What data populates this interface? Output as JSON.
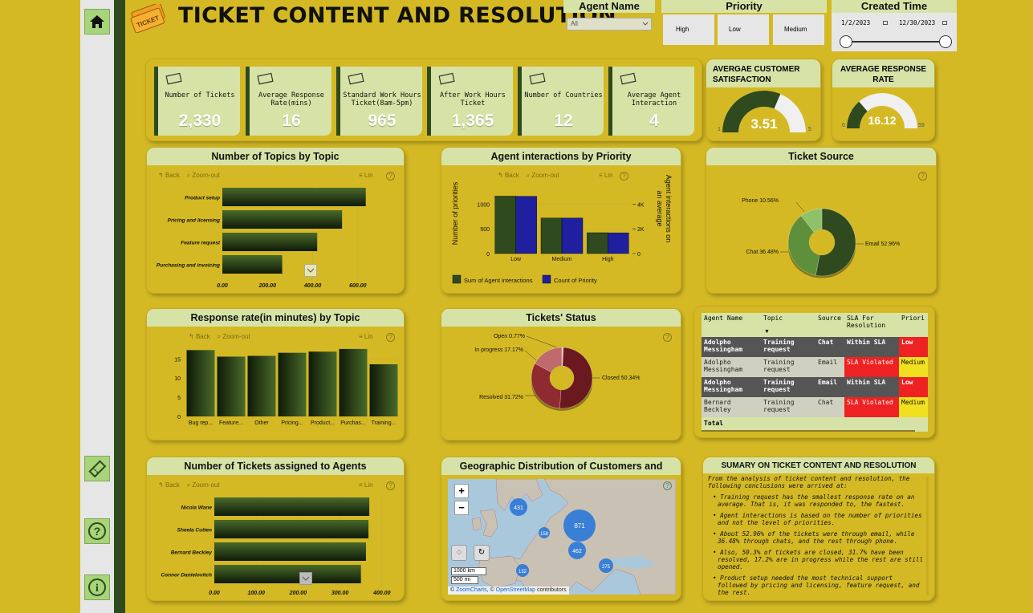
{
  "header": {
    "title": "TICKET CONTENT AND RESOLUTION",
    "logo_text": "TICKET"
  },
  "nav": {
    "home": "home-icon",
    "ticket": "ticket-icon",
    "help": "?",
    "info": "i"
  },
  "slicers": {
    "agent": {
      "title": "Agent Name",
      "value": "All"
    },
    "priority": {
      "title": "Priority",
      "options": [
        "High",
        "Low",
        "Medium"
      ]
    },
    "created": {
      "title": "Created Time",
      "start": "1/2/2023",
      "end": "12/30/2023"
    }
  },
  "kpis": [
    {
      "label": "Number of Tickets",
      "value": "2,330",
      "icon": "ticket-icon"
    },
    {
      "label": "Average Response Rate(mins)",
      "value": "16",
      "icon": "stopwatch-icon"
    },
    {
      "label": "Standard Work Hours Ticket(8am-5pm)",
      "value": "965",
      "icon": "ticket-icon"
    },
    {
      "label": "After Work Hours Ticket",
      "value": "1,365",
      "icon": "ticket-icon"
    },
    {
      "label": "Number of Countries",
      "value": "12",
      "icon": "map-pin-icon"
    },
    {
      "label": "Average Agent Interaction",
      "value": "4",
      "icon": "agent-icon"
    }
  ],
  "gauges": {
    "satisfaction": {
      "title": "AVERGAE CUSTOMER SATISFACTION",
      "value": "3.51",
      "min": "1",
      "max": "5",
      "v": 3.51,
      "lo": 1,
      "hi": 5
    },
    "response": {
      "title": "AVERAGE RESPONSE RATE",
      "value": "16.12",
      "min": "0",
      "max": "59",
      "v": 16.12,
      "lo": 0,
      "hi": 59
    }
  },
  "toolbar": {
    "back": "Back",
    "zoom": "Zoom-out",
    "lin": "Lin",
    "help": "?"
  },
  "chart_data": [
    {
      "id": "topics",
      "type": "bar",
      "title": "Number of Topics by Topic",
      "categories": [
        "Product setup",
        "Pricing and licensing",
        "Feature request",
        "Purchasing and invoicing"
      ],
      "values": [
        635,
        530,
        420,
        265
      ],
      "ticks": [
        "0.00",
        "200.00",
        "400.00",
        "600.00"
      ],
      "xlim": [
        0,
        700
      ]
    },
    {
      "id": "agent_priority",
      "type": "bar",
      "title": "Agent interactions by Priority",
      "categories": [
        "Low",
        "Medium",
        "High"
      ],
      "ylabel": "Number of priorities",
      "y2label": "Agent interactions on an average",
      "yticks": [
        "1000",
        "500",
        "0"
      ],
      "y2ticks": [
        "4K",
        "2K",
        "0"
      ],
      "series": [
        {
          "name": "Sum of Agent interactions",
          "values": [
            4650,
            2880,
            1690
          ],
          "color": "#2e4a1e"
        },
        {
          "name": "Count of Priority",
          "values": [
            1160,
            720,
            420
          ],
          "color": "#1f1fa0"
        }
      ],
      "ylim": [
        0,
        1300
      ],
      "y2lim": [
        0,
        5200
      ]
    },
    {
      "id": "source",
      "type": "pie",
      "title": "Ticket Source",
      "slices": [
        {
          "label": "Email 52.96%",
          "value": 52.96,
          "color": "#2e4a1e"
        },
        {
          "label": "Chat 36.48%",
          "value": 36.48,
          "color": "#5e8f3a"
        },
        {
          "label": "Phone 10.56%",
          "value": 10.56,
          "color": "#8fc06a"
        }
      ]
    },
    {
      "id": "response_topic",
      "type": "bar",
      "title": "Response rate(in minutes) by Topic",
      "categories": [
        "Bug rep...",
        "Feature...",
        "Other",
        "Pricing...",
        "Product...",
        "Purchas...",
        "Training..."
      ],
      "values": [
        17.3,
        15.6,
        15.8,
        16.6,
        16.9,
        17.6,
        13.6
      ],
      "yticks": [
        "15",
        "10",
        "5",
        "0"
      ],
      "ylim": [
        0,
        18
      ]
    },
    {
      "id": "status",
      "type": "pie",
      "title": "Tickets' Status",
      "slices": [
        {
          "label": "Closed 50.34%",
          "value": 50.34,
          "color": "#6a1a1f"
        },
        {
          "label": "Resolved 31.72%",
          "value": 31.72,
          "color": "#8f2a30"
        },
        {
          "label": "In progress 17.17%",
          "value": 17.17,
          "color": "#c06a6e"
        },
        {
          "label": "Open 0.77%",
          "value": 0.77,
          "color": "#e8c0c0"
        }
      ]
    },
    {
      "id": "agents",
      "type": "bar",
      "title": "Number of Tickets assigned to Agents",
      "categories": [
        "Nicola Wane",
        "Sheela Cutten",
        "Bernard Beckley",
        "Connor Danielovitch"
      ],
      "values": [
        370,
        368,
        362,
        350
      ],
      "ticks": [
        "0.00",
        "100.00",
        "200.00",
        "300.00",
        "400.00"
      ],
      "xlim": [
        0,
        410
      ]
    }
  ],
  "table": {
    "headers": [
      "Agent Name",
      "Topic",
      "Source",
      "SLA For Resolution",
      "Priori"
    ],
    "rows": [
      [
        "Adolpho Messingham",
        "Training request",
        "Chat",
        "Within SLA",
        "Low"
      ],
      [
        "Adolpho Messingham",
        "Training request",
        "Email",
        "SLA Violated",
        "Medium"
      ],
      [
        "Adolpho Messingham",
        "Training request",
        "Email",
        "Within SLA",
        "Low"
      ],
      [
        "Bernard Beckley",
        "Training request",
        "Chat",
        "SLA Violated",
        "Medium"
      ]
    ],
    "total": "Total"
  },
  "map": {
    "title": "Geographic Distribution of Customers and Tickets",
    "bubbles": [
      "431",
      "871",
      "158",
      "462",
      "275",
      "132"
    ],
    "scale_km": "1000 km",
    "scale_mi": "500 mi",
    "attrib1": "© ",
    "attrib_zoom": "ZoomCharts",
    "attrib2": ", © ",
    "attrib_osm": "OpenStreetMap",
    "attrib3": " contributors",
    "zoom_in": "+",
    "zoom_out": "−"
  },
  "summary": {
    "title": "SUMARY ON TICKET CONTENT AND RESOLUTION",
    "intro": "From the analysis of ticket content and resolution, the following conclusions were arrived at:",
    "points": [
      "Training request has the smallest response rate on an average. That is, it was responded to, the fastest.",
      "Agent interactions is based on the number of priorities and not the level of priorities.",
      "About 52.96% of the tickets were through email, while 36.48% through chats, and the rest through phone.",
      "Also, 50.3% of tickets are closed, 31.7% have been resolved, 17.2% are in progress while the rest are still opened.",
      "Product setup needed the most technical support followed by pricing and licensing, feature request, and the rest."
    ]
  }
}
